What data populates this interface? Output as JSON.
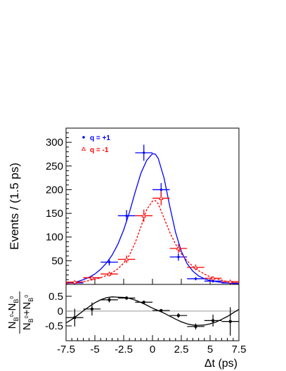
{
  "chart_data": [
    {
      "type": "scatter",
      "title": "",
      "xlabel": "",
      "ylabel": "Events / (1.5 ps)",
      "xlim": [
        -7.5,
        7.5
      ],
      "ylim": [
        0,
        330
      ],
      "grid": false,
      "legend_position": "top-left",
      "x_bin_half_width": 0.75,
      "yticks": [
        "50",
        "100",
        "150",
        "200",
        "250",
        "300"
      ],
      "yticks_values": [
        50,
        100,
        150,
        200,
        250,
        300
      ],
      "series": [
        {
          "name": "q = +1",
          "color": "#0000ff",
          "marker": "filled-circle",
          "x": [
            -6.75,
            -5.25,
            -3.75,
            -2.25,
            -0.75,
            0.75,
            2.25,
            3.75,
            5.25,
            6.75
          ],
          "y": [
            3,
            14,
            47,
            145,
            278,
            200,
            58,
            12,
            7,
            3
          ],
          "yerr": [
            2,
            4,
            7,
            12,
            17,
            14,
            8,
            3.5,
            3,
            2
          ],
          "fit": {
            "style": "solid",
            "x": [
              -7.5,
              -7.0,
              -6.5,
              -6.0,
              -5.5,
              -5.0,
              -4.5,
              -4.0,
              -3.5,
              -3.0,
              -2.5,
              -2.0,
              -1.5,
              -1.0,
              -0.5,
              0.0,
              0.25,
              0.5,
              1.0,
              1.5,
              2.0,
              2.5,
              3.0,
              3.5,
              4.0,
              4.5,
              5.0,
              5.5,
              6.0,
              6.5,
              7.0,
              7.5
            ],
            "y": [
              2,
              4,
              6,
              10,
              15,
              22,
              32,
              45,
              62,
              85,
              115,
              152,
              195,
              235,
              262,
              276,
              275,
              266,
              225,
              165,
              110,
              70,
              44,
              28,
              18,
              12,
              8,
              6,
              4,
              3,
              2,
              2
            ]
          }
        },
        {
          "name": "q = -1",
          "color": "#ff0000",
          "marker": "open-triangle",
          "x": [
            -6.75,
            -5.25,
            -3.75,
            -2.25,
            -0.75,
            0.75,
            2.25,
            3.75,
            5.25,
            6.75
          ],
          "y": [
            5,
            14,
            22,
            53,
            145,
            182,
            76,
            36,
            13,
            6
          ],
          "yerr": [
            2,
            4,
            5,
            8,
            13,
            15,
            9,
            6,
            4,
            2.5
          ],
          "fit": {
            "style": "dashed",
            "x": [
              -7.5,
              -7.0,
              -6.5,
              -6.0,
              -5.5,
              -5.0,
              -4.5,
              -4.0,
              -3.5,
              -3.0,
              -2.5,
              -2.0,
              -1.5,
              -1.0,
              -0.5,
              0.0,
              0.25,
              0.5,
              1.0,
              1.5,
              2.0,
              2.5,
              3.0,
              3.5,
              4.0,
              4.5,
              5.0,
              5.5,
              6.0,
              6.5,
              7.0,
              7.5
            ],
            "y": [
              2,
              3,
              4,
              6,
              8,
              11,
              14,
              19,
              25,
              33,
              45,
              62,
              88,
              122,
              158,
              176,
              177,
              170,
              140,
              110,
              85,
              65,
              50,
              38,
              29,
              22,
              16,
              12,
              9,
              6,
              4,
              3
            ]
          }
        }
      ]
    },
    {
      "type": "scatter",
      "title": "",
      "xlabel": "Δt (ps)",
      "ylabel_parts": {
        "numerator_main": "N",
        "numerator_sub1": "B",
        "numerator_sup1": "0",
        "numerator_sep": "-N",
        "numerator_sub2": "B",
        "numerator_sup2": "0",
        "denominator_main": "N",
        "denominator_sub1": "B",
        "denominator_sup1": "0",
        "denominator_sep": "+N",
        "denominator_sub2": "B",
        "denominator_sup2": "0"
      },
      "xlim": [
        -7.5,
        7.5
      ],
      "ylim": [
        -1.0,
        0.9
      ],
      "grid": false,
      "zero_line": true,
      "x_bin_half_width": 0.75,
      "xticks": [
        "-7.5",
        "-5",
        "-2.5",
        "0",
        "2.5",
        "5",
        "7.5"
      ],
      "xticks_values": [
        -7.5,
        -5,
        -2.5,
        0,
        2.5,
        5,
        7.5
      ],
      "yticks": [
        "-0.5",
        "0",
        "0.5"
      ],
      "yticks_values": [
        -0.5,
        0,
        0.5
      ],
      "series": [
        {
          "color": "#000000",
          "marker": "filled-square",
          "x": [
            -6.75,
            -5.25,
            -3.75,
            -2.25,
            -0.75,
            0.75,
            2.25,
            3.75,
            5.25,
            6.75
          ],
          "y": [
            -0.22,
            0.07,
            0.38,
            0.44,
            0.3,
            0.02,
            -0.15,
            -0.52,
            -0.32,
            -0.35
          ],
          "yerr": [
            0.3,
            0.22,
            0.09,
            0.06,
            0.05,
            0.05,
            0.08,
            0.1,
            0.2,
            0.48
          ],
          "fit": {
            "style": "solid",
            "x": [
              -7.5,
              -7.0,
              -6.5,
              -6.0,
              -5.5,
              -5.0,
              -4.5,
              -4.0,
              -3.5,
              -3.0,
              -2.5,
              -2.0,
              -1.5,
              -1.0,
              -0.5,
              0.0,
              0.5,
              1.0,
              1.5,
              2.0,
              2.5,
              3.0,
              3.5,
              4.0,
              4.5,
              5.0,
              5.5,
              6.0,
              6.5,
              7.0,
              7.5
            ],
            "y": [
              -0.4,
              -0.28,
              -0.14,
              0.01,
              0.15,
              0.28,
              0.38,
              0.45,
              0.48,
              0.47,
              0.46,
              0.43,
              0.37,
              0.29,
              0.2,
              0.1,
              0.02,
              -0.07,
              -0.17,
              -0.27,
              -0.36,
              -0.43,
              -0.47,
              -0.48,
              -0.47,
              -0.43,
              -0.37,
              -0.28,
              -0.18,
              -0.06,
              0.06
            ]
          }
        }
      ]
    }
  ]
}
